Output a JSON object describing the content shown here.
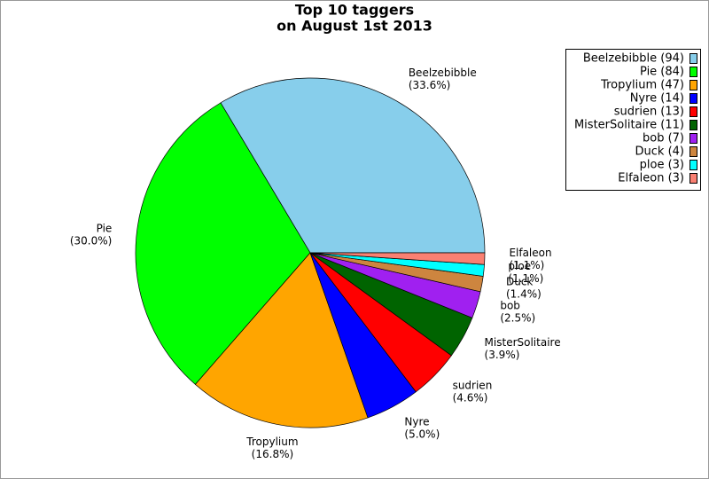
{
  "chart_data": {
    "type": "pie",
    "title": [
      "Top 10 taggers",
      "on August 1st 2013"
    ],
    "categories": [
      "Beelzebibble",
      "Pie",
      "Tropylium",
      "Nyre",
      "sudrien",
      "MisterSolitaire",
      "bob",
      "Duck",
      "ploe",
      "Elfaleon"
    ],
    "values": [
      94,
      84,
      47,
      14,
      13,
      11,
      7,
      4,
      3,
      3
    ],
    "value_labels": [
      "Beelzebibble (94)",
      "Pie (84)",
      "Tropylium (47)",
      "Nyre (14)",
      "sudrien (13)",
      "MisterSolitaire (11)",
      "bob (7)",
      "Duck (4)",
      "ploe (3)",
      "Elfaleon (3)"
    ],
    "percents": [
      33.6,
      30.0,
      16.8,
      5.0,
      4.6,
      3.9,
      2.5,
      1.4,
      1.1,
      1.1
    ],
    "percent_labels": [
      "(33.6%)",
      "(30.0%)",
      "(16.8%)",
      "(5.0%)",
      "(4.6%)",
      "(3.9%)",
      "(2.5%)",
      "(1.4%)",
      "(1.1%)",
      "(1.1%)"
    ],
    "colors": [
      "#87ceeb",
      "#00ff00",
      "#ffa500",
      "#0000ff",
      "#ff0000",
      "#006400",
      "#a020f0",
      "#cd853f",
      "#00ffff",
      "#fa8072"
    ],
    "legend": "upper right"
  }
}
